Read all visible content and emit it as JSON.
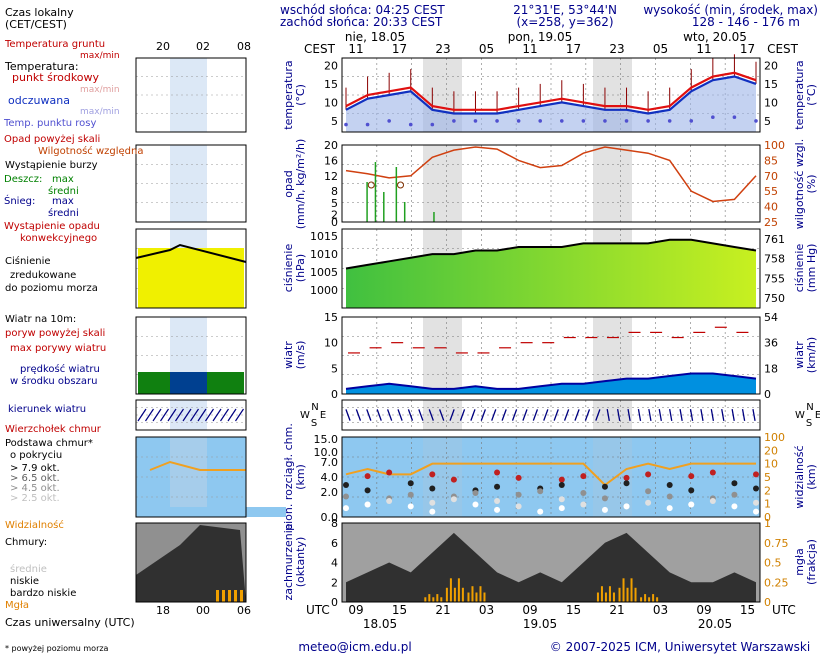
{
  "header": {
    "sunrise": "wschód słońca: 04:25 CEST",
    "sunset": "zachód słońca: 20:33 CEST",
    "coords1": "21°31'E, 53°44'N",
    "coords2": "(x=258, y=362)",
    "height_label": "wysokość (min, środek, max)",
    "height_values": "128 - 146 - 176 m"
  },
  "top_axis": {
    "cest_label": "CEST",
    "days": [
      "nie, 18.05",
      "pon, 19.05",
      "wto, 20.05"
    ],
    "hours": [
      "11",
      "17",
      "23",
      "05",
      "11",
      "17",
      "23",
      "05",
      "11",
      "17"
    ]
  },
  "bottom_axis": {
    "utc_label": "UTC",
    "hours": [
      "09",
      "15",
      "21",
      "03",
      "09",
      "15",
      "21",
      "03",
      "09",
      "15"
    ],
    "dates": [
      "18.05",
      "19.05",
      "20.05"
    ]
  },
  "legend": {
    "time_local": "Czas lokalny",
    "time_local2": "(CET/CEST)",
    "legend_top_hours": [
      "20",
      "02",
      "08"
    ],
    "legend_bottom_hours": [
      "18",
      "00",
      "06"
    ],
    "ground_temp": "Temperatura gruntu",
    "ground_temp2": "max/min",
    "temperature": "Temperatura:",
    "mid_point": "punkt środkowy",
    "max_min": "max/min",
    "feels_like": "odczuwana",
    "feels_max_min": "max/min",
    "dew_point": "Temp. punktu rosy",
    "precip_above": "Opad powyżej skali",
    "rel_humidity": "Wilgotność względna",
    "storm": "Wystąpienie burzy",
    "rain": "Deszcz:",
    "rain_max": "max",
    "rain_mid": "średni",
    "snow": "Śnieg:",
    "snow_max": "max",
    "snow_mid": "średni",
    "conv_precip": "Wystąpienie opadu",
    "conv_precip2": "konwekcyjnego",
    "pressure1": "Ciśnienie",
    "pressure2": "zredukowane",
    "pressure3": "do poziomu morza",
    "wind_10m": "Wiatr na 10m:",
    "gust_above": "poryw powyżej skali",
    "max_gust": "max porywy wiatru",
    "wind_speed": "prędkość wiatru",
    "wind_speed2": "w środku obszaru",
    "wind_dir": "kierunek wiatru",
    "cloud_top": "Wierzchołek chmur",
    "cloud_base": "Podstawa chmur*",
    "cloud_base2": "o pokryciu",
    "okt_items": [
      "> 7.9 okt.",
      "> 6.5 okt.",
      "> 4.5 okt.",
      "> 2.5 okt.",
      "> 0.1 okt."
    ],
    "visibility": "Widzialność",
    "clouds": "Chmury:",
    "cloud_high": "wysokie",
    "cloud_mid": "średnie",
    "cloud_low": "niskie",
    "cloud_vlow": "bardzo niskie",
    "fog": "Mgła",
    "utc_time": "Czas uniwersalny (UTC)",
    "footnote": "* powyżej poziomu morza"
  },
  "panel_labels": {
    "temp_left": "temperatura",
    "temp_left2": "(°C)",
    "temp_right": "temperatura",
    "temp_right2": "(°C)",
    "precip_left": "opad",
    "precip_left2": "(mm/h, kg/m²/h)",
    "precip_right": "wilgotność wzgl.",
    "precip_right2": "(%)",
    "press_left": "ciśnienie",
    "press_left2": "(hPa)",
    "press_right": "ciśnienie",
    "press_right2": "(mm Hg)",
    "wind_left": "wiatr",
    "wind_left2": "(m/s)",
    "wind_right": "wiatr",
    "wind_right2": "(km/h)",
    "dir_letters": [
      "N",
      "W",
      "E",
      "S"
    ],
    "cloudh_left": "pion. rozciągł. chm.",
    "cloudh_left2": "(km)",
    "cloudh_right": "widzialność",
    "cloudh_right2": "(km)",
    "cover_left": "zachmurzenie",
    "cover_left2": "(oktanty)",
    "cover_right": "mgła",
    "cover_right2": "(frakcja)"
  },
  "footer": {
    "email": "meteo@icm.edu.pl",
    "copyright": "© 2007-2025 ICM, Uniwersytet Warszawski"
  },
  "chart_data": [
    {
      "type": "line",
      "title": "temperatura (°C)",
      "ylim": [
        2,
        22
      ],
      "yticks": [
        5,
        10,
        15,
        20
      ],
      "x_hours_cest": [
        11,
        14,
        17,
        20,
        23,
        2,
        5,
        8,
        11,
        14,
        17,
        20,
        23,
        2,
        5,
        8,
        11,
        14,
        17,
        20
      ],
      "series": [
        {
          "name": "punkt środkowy",
          "values": [
            9,
            12,
            13,
            14,
            9,
            8,
            8,
            8,
            9,
            10,
            11,
            10,
            9,
            9,
            8,
            9,
            14,
            17,
            18,
            16
          ]
        },
        {
          "name": "odczuwana",
          "values": [
            8,
            11,
            12,
            13,
            8,
            7,
            7,
            7,
            8,
            9,
            10,
            9,
            8,
            8,
            7,
            8,
            13,
            16,
            17,
            15
          ]
        },
        {
          "name": "Temp. punktu rosy",
          "values": [
            4,
            4,
            5,
            4,
            4,
            5,
            5,
            5,
            5,
            5,
            5,
            5,
            5,
            5,
            5,
            5,
            5,
            6,
            6,
            5
          ]
        }
      ]
    },
    {
      "type": "bar",
      "title": "opad (mm/h, kg/m²/h) / wilgotność wzgl. (%)",
      "ylim": [
        0,
        20
      ],
      "y2lim": [
        25,
        100
      ],
      "yticks": [
        0,
        2,
        5,
        8,
        12,
        16,
        20
      ],
      "y2ticks": [
        25,
        40,
        55,
        70,
        85,
        100
      ],
      "series": [
        {
          "name": "Wilgotność względna",
          "values": [
            75,
            72,
            68,
            70,
            88,
            95,
            98,
            96,
            85,
            78,
            80,
            92,
            98,
            95,
            92,
            85,
            55,
            45,
            47,
            70
          ]
        }
      ]
    },
    {
      "type": "area",
      "title": "ciśnienie (hPa)",
      "ylim": [
        995,
        1017
      ],
      "yticks": [
        1000,
        1005,
        1010,
        1015
      ],
      "y2ticks": [
        750,
        755,
        758,
        761
      ],
      "series": [
        {
          "name": "Ciśnienie zredukowane do poziomu morza",
          "values": [
            1006,
            1007,
            1008,
            1009,
            1010,
            1010,
            1011,
            1011,
            1012,
            1012,
            1012,
            1013,
            1013,
            1013,
            1013,
            1014,
            1014,
            1013,
            1012,
            1011
          ]
        }
      ]
    },
    {
      "type": "line",
      "title": "wiatr (m/s)",
      "ylim": [
        0,
        15
      ],
      "yticks": [
        0,
        5,
        10,
        15
      ],
      "y2ticks": [
        0,
        18,
        36,
        54
      ],
      "series": [
        {
          "name": "prędkość wiatru",
          "values": [
            1,
            1.5,
            2,
            1.5,
            1,
            1,
            1.5,
            1,
            1,
            1.5,
            2,
            2,
            2.5,
            3,
            3,
            3.5,
            4,
            4,
            3.5,
            3
          ]
        },
        {
          "name": "max porywy wiatru",
          "values": [
            8,
            9,
            10,
            9,
            9,
            8,
            8,
            9,
            10,
            10,
            11,
            11,
            11,
            12,
            12,
            11,
            12,
            13,
            12,
            11
          ]
        }
      ]
    },
    {
      "type": "scatter",
      "title": "pion. rozciągł. chm. (km) / widzialność (km)",
      "ylim": [
        0,
        15
      ],
      "yticks": [
        0,
        2.0,
        4.0,
        7.0,
        10.0,
        15.0
      ],
      "y2ticks": [
        0,
        1,
        2,
        5,
        10,
        20,
        100
      ],
      "series": [
        {
          "name": "Widzialność",
          "values": [
            8,
            9,
            8,
            8,
            10,
            10,
            10,
            10,
            10,
            10,
            10,
            10,
            6,
            9,
            10,
            9,
            10,
            10,
            10,
            10
          ]
        }
      ]
    },
    {
      "type": "area",
      "title": "zachmurzenie (oktanty) / mgła (frakcja)",
      "ylim": [
        0,
        8
      ],
      "yticks": [
        0,
        2,
        4,
        6,
        8
      ],
      "y2ticks": [
        0,
        0.25,
        0.5,
        0.75,
        1
      ],
      "series": [
        {
          "name": "niskie",
          "values": [
            2,
            3,
            4,
            3,
            5,
            7,
            5,
            3,
            2,
            3,
            2,
            4,
            6,
            7,
            5,
            3,
            2,
            2,
            3,
            2
          ]
        },
        {
          "name": "Mgła",
          "values": [
            0,
            0,
            0,
            0,
            0.1,
            0.3,
            0.2,
            0,
            0,
            0,
            0,
            0,
            0.2,
            0.3,
            0.1,
            0,
            0,
            0,
            0,
            0
          ]
        }
      ]
    }
  ]
}
